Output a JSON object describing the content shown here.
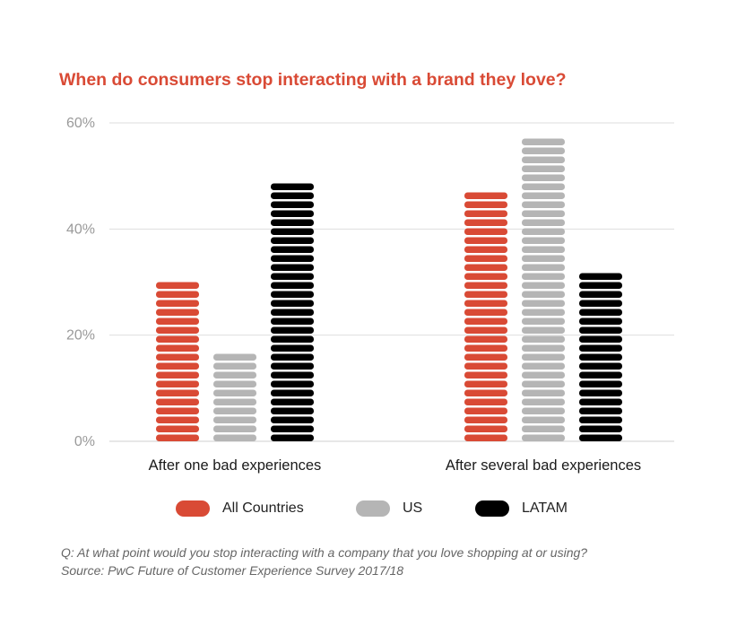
{
  "title": "When do consumers stop interacting with a brand they love?",
  "chart_data": {
    "type": "bar",
    "title": "When do consumers stop interacting with a brand they love?",
    "categories": [
      "After one bad experiences",
      "After several bad experiences"
    ],
    "series": [
      {
        "name": "All Countries",
        "values": [
          30,
          48
        ],
        "color": "#d94a35"
      },
      {
        "name": "US",
        "values": [
          18,
          58
        ],
        "color": "#b5b5b5"
      },
      {
        "name": "LATAM",
        "values": [
          50,
          32
        ],
        "color": "#000000"
      }
    ],
    "yticks": [
      "0%",
      "20%",
      "40%",
      "60%"
    ],
    "ylim": [
      0,
      60
    ],
    "xlabel": "",
    "ylabel": "",
    "grid": true,
    "legend_position": "bottom"
  },
  "legend": [
    {
      "label": "All Countries",
      "color": "#d94a35"
    },
    {
      "label": "US",
      "color": "#b5b5b5"
    },
    {
      "label": "LATAM",
      "color": "#000000"
    }
  ],
  "footnote": {
    "question": "Q: At what point would you stop interacting with a company that you love shopping at or using?",
    "source": "Source: PwC Future of Customer Experience Survey 2017/18"
  }
}
